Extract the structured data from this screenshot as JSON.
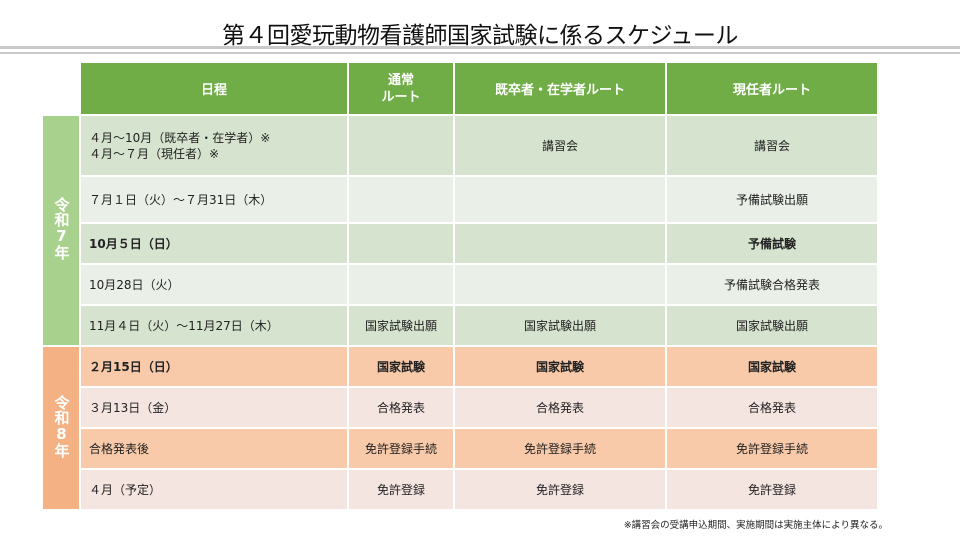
{
  "title": "第４回愛玩動物看護師国家試験に係るスケジュール",
  "headers": {
    "date": "日程",
    "normal_1": "通常",
    "normal_2": "ルート",
    "kisotsu": "既卒者・在学者ルート",
    "genin": "現任者ルート"
  },
  "eras": {
    "r7": "令和7年",
    "r8": "令和8年"
  },
  "rows": [
    {
      "date": "４月～10月（既卒者・在学者）※",
      "date2": "４月～７月（現任者）※",
      "normal": "",
      "kisotsu": "講習会",
      "genin": "講習会"
    },
    {
      "date": "７月１日（火）～７月31日（木）",
      "normal": "",
      "kisotsu": "",
      "genin": "予備試験出願"
    },
    {
      "date": "10月５日（日）",
      "normal": "",
      "kisotsu": "",
      "genin": "予備試験"
    },
    {
      "date": "10月28日（火）",
      "normal": "",
      "kisotsu": "",
      "genin": "予備試験合格発表"
    },
    {
      "date": "11月４日（火）～11月27日（木）",
      "normal": "国家試験出願",
      "kisotsu": "国家試験出願",
      "genin": "国家試験出願"
    },
    {
      "date": "２月15日（日）",
      "normal": "国家試験",
      "kisotsu": "国家試験",
      "genin": "国家試験"
    },
    {
      "date": "３月13日（金）",
      "normal": "合格発表",
      "kisotsu": "合格発表",
      "genin": "合格発表"
    },
    {
      "date": "合格発表後",
      "normal": "免許登録手続",
      "kisotsu": "免許登録手続",
      "genin": "免許登録手続"
    },
    {
      "date": "４月（予定）",
      "normal": "免許登録",
      "kisotsu": "免許登録",
      "genin": "免許登録"
    }
  ],
  "footnote": "※講習会の受講申込期間、実施期間は実施主体により異なる。"
}
